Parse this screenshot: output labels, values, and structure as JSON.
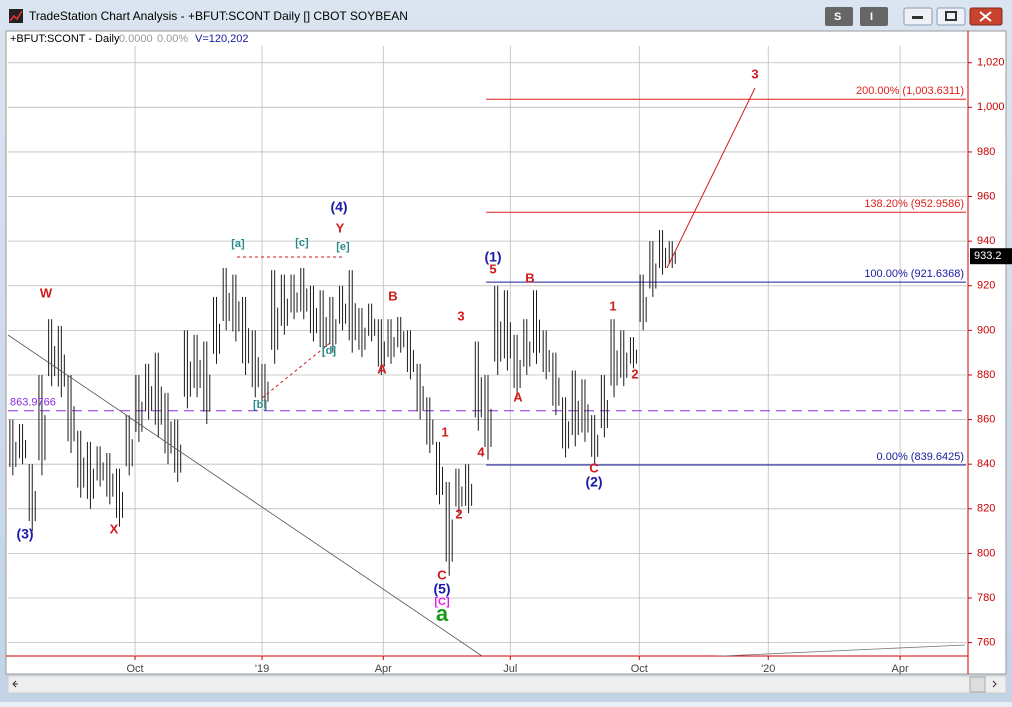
{
  "window": {
    "title": "TradeStation Chart Analysis - +BFUT:SCONT Daily [] CBOT SOYBEAN",
    "buttons": [
      "S",
      "I"
    ]
  },
  "chart_data": {
    "type": "ohlc",
    "symbol": "+BFUT:SCONT - Daily",
    "change": "0.0000",
    "change_pct": "0.00%",
    "volume": "V=120,202",
    "lows": [
      835,
      840,
      810,
      835,
      875,
      870,
      845,
      825,
      820,
      830,
      822,
      812,
      835,
      850,
      860,
      852,
      840,
      832,
      865,
      870,
      858,
      885,
      900,
      895,
      880,
      870,
      865,
      885,
      898,
      905,
      905,
      895,
      888,
      890,
      900,
      890,
      888,
      895,
      880,
      885,
      890,
      878,
      860,
      845,
      822,
      790,
      818,
      818,
      855,
      842,
      880,
      882,
      870,
      880,
      885,
      878,
      862,
      843,
      848,
      850,
      840,
      852,
      870,
      875,
      883,
      900,
      915,
      925,
      928
    ],
    "highs": [
      860,
      858,
      840,
      880,
      905,
      902,
      880,
      855,
      850,
      848,
      845,
      838,
      862,
      880,
      885,
      890,
      872,
      860,
      900,
      898,
      895,
      915,
      928,
      925,
      915,
      900,
      885,
      927,
      925,
      925,
      928,
      920,
      918,
      915,
      920,
      927,
      910,
      912,
      905,
      905,
      906,
      900,
      885,
      870,
      850,
      832,
      838,
      840,
      895,
      880,
      920,
      918,
      898,
      905,
      918,
      900,
      890,
      870,
      882,
      878,
      862,
      880,
      905,
      900,
      897,
      925,
      940,
      945,
      940
    ],
    "color": "#1a1a1a",
    "xlim": [
      -0.5,
      98.5
    ],
    "xticks": [
      {
        "value": 12.6,
        "label": "Oct"
      },
      {
        "value": 25.7,
        "label": "'19"
      },
      {
        "value": 38.2,
        "label": "Apr"
      },
      {
        "value": 51.3,
        "label": "Jul"
      },
      {
        "value": 64.6,
        "label": "Oct"
      },
      {
        "value": 77.9,
        "label": "'20"
      },
      {
        "value": 91.5,
        "label": "Apr"
      }
    ],
    "ylim": [
      754,
      1027.5
    ],
    "yticks": [
      760,
      780,
      800,
      820,
      840,
      860,
      880,
      900,
      920,
      940,
      960,
      980,
      {
        "value": 1000,
        "label": "1,000"
      },
      {
        "value": 1020,
        "label": "1,020"
      }
    ],
    "grid": true,
    "last_price": {
      "value": 933.25,
      "label": "933.2"
    },
    "reference_line": {
      "value": 863.9766,
      "label": "863.9766",
      "color": "#8a2be2"
    },
    "fib_levels": [
      {
        "label": "200.00% (1,003.6311)",
        "value": 1003.6311,
        "color": "#e0201c"
      },
      {
        "label": "138.20% (952.9586)",
        "value": 952.9586,
        "color": "#e0201c"
      },
      {
        "label": "100.00% (921.6368)",
        "value": 921.6368,
        "color": "#1a1aa0"
      },
      {
        "label": "0.00% (839.6425)",
        "value": 839.6425,
        "color": "#1a1aa0"
      }
    ],
    "annotations": [
      {
        "text": "W",
        "color": "#d11a1a"
      },
      {
        "text": "(3)",
        "color": "#1a1aa8"
      },
      {
        "text": "X",
        "color": "#d11a1a"
      },
      {
        "text": "[a]",
        "color": "#2a8a8a"
      },
      {
        "text": "[b]",
        "color": "#2a8a8a"
      },
      {
        "text": "[c]",
        "color": "#2a8a8a"
      },
      {
        "text": "[d]",
        "color": "#2a8a8a"
      },
      {
        "text": "[e]",
        "color": "#2a8a8a"
      },
      {
        "text": "Y",
        "color": "#d11a1a"
      },
      {
        "text": "(4)",
        "color": "#1a1aa8"
      },
      {
        "text": "A",
        "color": "#d11a1a"
      },
      {
        "text": "B",
        "color": "#d11a1a"
      },
      {
        "text": "3",
        "color": "#d11a1a"
      },
      {
        "text": "1",
        "color": "#d11a1a"
      },
      {
        "text": "2",
        "color": "#d11a1a"
      },
      {
        "text": "4",
        "color": "#d11a1a"
      },
      {
        "text": "C",
        "color": "#d11a1a"
      },
      {
        "text": "(5)",
        "color": "#1a1aa8"
      },
      {
        "text": "[C]",
        "color": "#e020e0"
      },
      {
        "text": "a",
        "color": "#1a9a1a"
      },
      {
        "text": "5",
        "color": "#d11a1a"
      },
      {
        "text": "(1)",
        "color": "#1a1aa8"
      },
      {
        "text": "A",
        "color": "#d11a1a"
      },
      {
        "text": "B",
        "color": "#d11a1a"
      },
      {
        "text": "C",
        "color": "#d11a1a"
      },
      {
        "text": "(2)",
        "color": "#1a1aa8"
      },
      {
        "text": "1",
        "color": "#d11a1a"
      },
      {
        "text": "2",
        "color": "#d11a1a"
      },
      {
        "text": "3",
        "color": "#d11a1a"
      }
    ]
  }
}
